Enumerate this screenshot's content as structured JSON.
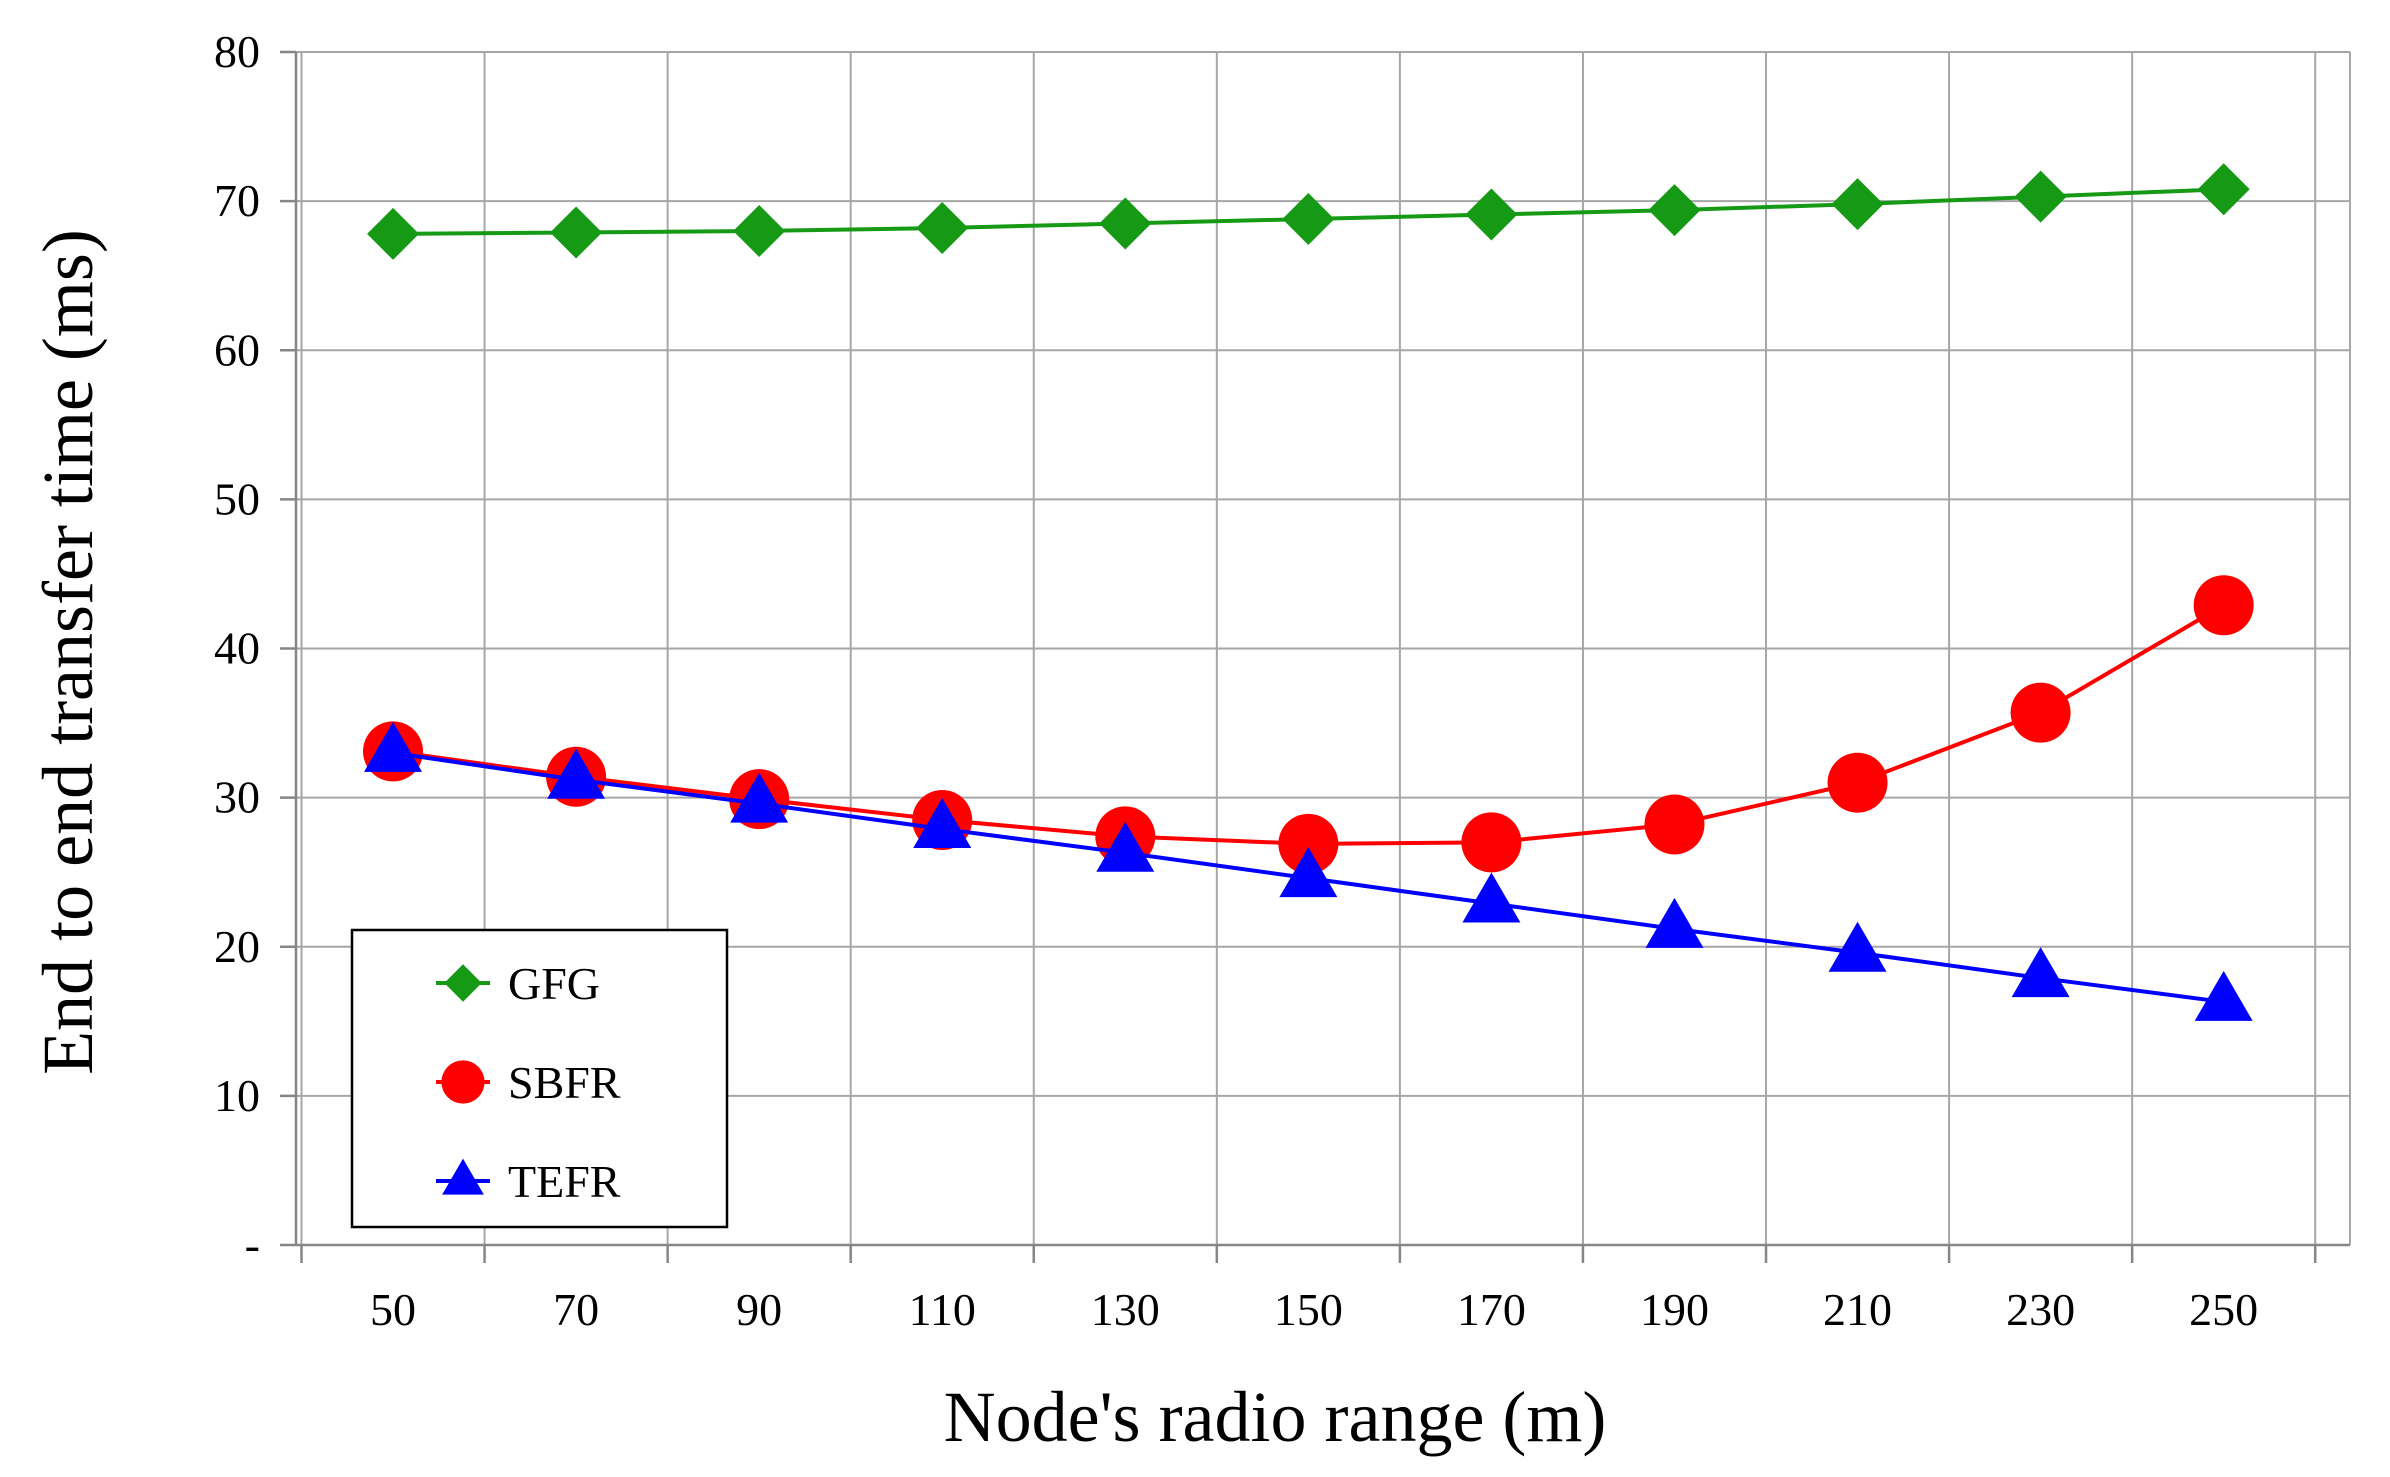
{
  "chart_data": {
    "type": "line",
    "title": "",
    "xlabel": "Node's radio range (m)",
    "ylabel": "End to end transfer time (ms)",
    "categories": [
      "50",
      "70",
      "90",
      "110",
      "130",
      "150",
      "170",
      "190",
      "210",
      "230",
      "250"
    ],
    "ylim": [
      0,
      80
    ],
    "y_ticks": [
      0,
      10,
      20,
      30,
      40,
      50,
      60,
      70,
      80
    ],
    "y_tick_labels": [
      "-",
      "10",
      "20",
      "30",
      "40",
      "50",
      "60",
      "70",
      "80"
    ],
    "grid": true,
    "legend_position": "bottom-left",
    "series": [
      {
        "name": "GFG",
        "color": "#169a16",
        "marker": "diamond",
        "values": [
          67.8,
          67.9,
          68.0,
          68.2,
          68.5,
          68.8,
          69.1,
          69.4,
          69.8,
          70.3,
          70.8
        ]
      },
      {
        "name": "SBFR",
        "color": "#ff0000",
        "marker": "circle",
        "values": [
          33.1,
          31.4,
          29.9,
          28.5,
          27.4,
          26.9,
          27.0,
          28.2,
          31.0,
          35.7,
          42.9
        ]
      },
      {
        "name": "TEFR",
        "color": "#0000ff",
        "marker": "triangle",
        "values": [
          33.0,
          31.2,
          29.6,
          27.9,
          26.3,
          24.6,
          22.9,
          21.2,
          19.6,
          17.9,
          16.3
        ]
      }
    ]
  }
}
